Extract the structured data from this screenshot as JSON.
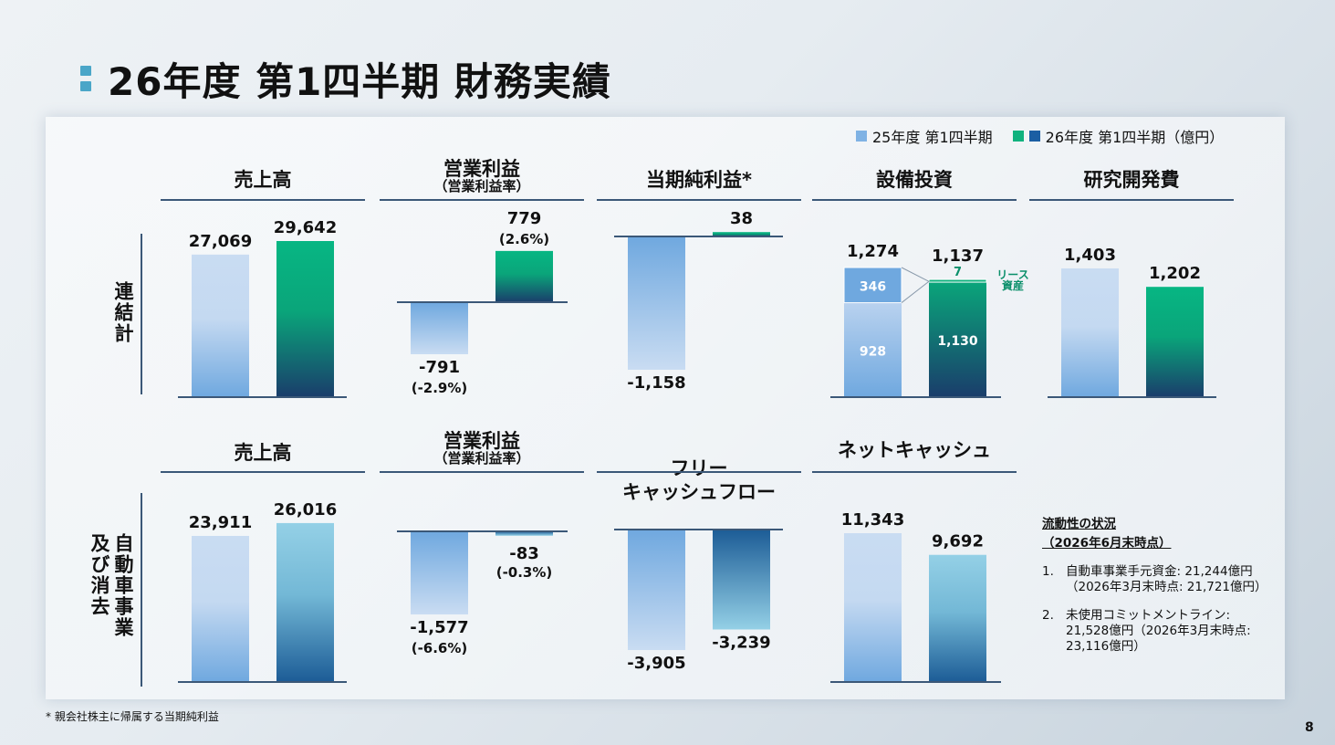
{
  "title": "26年度 第1四半期 財務実績",
  "legend": {
    "prev": "25年度 第1四半期",
    "curr": "26年度 第1四半期（億円）",
    "colors": {
      "prev": "#7fb2e4",
      "curr_green": "#10b27e",
      "curr_blue": "#1b5ea3"
    }
  },
  "row_labels": {
    "consolidated": "連結計",
    "auto": "自動車事業\n及び消去"
  },
  "headers": {
    "c1": {
      "main": "売上高",
      "sub": ""
    },
    "c2": {
      "main": "営業利益",
      "sub": "（営業利益率）"
    },
    "c3": {
      "main": "当期純利益*",
      "sub": ""
    },
    "c4": {
      "main": "設備投資",
      "sub": ""
    },
    "c5": {
      "main": "研究開発費",
      "sub": ""
    },
    "a1": {
      "main": "売上高",
      "sub": ""
    },
    "a2": {
      "main": "営業利益",
      "sub": "（営業利益率）"
    },
    "a3": {
      "main": "フリー\nキャッシュフロー",
      "sub": ""
    },
    "a4": {
      "main": "ネットキャッシュ",
      "sub": ""
    }
  },
  "chart_data": [
    {
      "id": "c1",
      "type": "bar",
      "categories": [
        "25年度 第1四半期",
        "26年度 第1四半期"
      ],
      "values": [
        27069,
        29642
      ],
      "labels": [
        "27,069",
        "29,642"
      ]
    },
    {
      "id": "c2",
      "type": "bar",
      "categories": [
        "25年度 第1四半期",
        "26年度 第1四半期"
      ],
      "values": [
        -791,
        779
      ],
      "labels": [
        "-791",
        "779"
      ],
      "sublabels": [
        "(-2.9%)",
        "(2.6%)"
      ]
    },
    {
      "id": "c3",
      "type": "bar",
      "categories": [
        "25年度 第1四半期",
        "26年度 第1四半期"
      ],
      "values": [
        -1158,
        38
      ],
      "labels": [
        "-1,158",
        "38"
      ]
    },
    {
      "id": "c4",
      "type": "bar",
      "stacked": true,
      "categories": [
        "25年度 第1四半期",
        "26年度 第1四半期"
      ],
      "totals": [
        1274,
        1137
      ],
      "total_labels": [
        "1,274",
        "1,137"
      ],
      "series": [
        {
          "values": [
            928,
            1130
          ],
          "labels": [
            "928",
            "1,130"
          ]
        },
        {
          "values": [
            346,
            7
          ],
          "labels": [
            "346",
            "7"
          ]
        }
      ],
      "annotation": "リース\n資産"
    },
    {
      "id": "c5",
      "type": "bar",
      "categories": [
        "25年度 第1四半期",
        "26年度 第1四半期"
      ],
      "values": [
        1403,
        1202
      ],
      "labels": [
        "1,403",
        "1,202"
      ]
    },
    {
      "id": "a1",
      "type": "bar",
      "categories": [
        "25年度 第1四半期",
        "26年度 第1四半期"
      ],
      "values": [
        23911,
        26016
      ],
      "labels": [
        "23,911",
        "26,016"
      ]
    },
    {
      "id": "a2",
      "type": "bar",
      "categories": [
        "25年度 第1四半期",
        "26年度 第1四半期"
      ],
      "values": [
        -1577,
        -83
      ],
      "labels": [
        "-1,577",
        "-83"
      ],
      "sublabels": [
        "(-6.6%)",
        "(-0.3%)"
      ]
    },
    {
      "id": "a3",
      "type": "bar",
      "categories": [
        "25年度 第1四半期",
        "26年度 第1四半期"
      ],
      "values": [
        -3905,
        -3239
      ],
      "labels": [
        "-3,905",
        "-3,239"
      ]
    },
    {
      "id": "a4",
      "type": "bar",
      "categories": [
        "25年度 第1四半期",
        "26年度 第1四半期"
      ],
      "values": [
        11343,
        9692
      ],
      "labels": [
        "11,343",
        "9,692"
      ]
    }
  ],
  "notes": {
    "heading": "流動性の状況",
    "subheading": "（2026年6月末時点）",
    "items": [
      {
        "num": "1.",
        "text": "自動車事業手元資金: 21,244億円（2026年3月末時点: 21,721億円）"
      },
      {
        "num": "2.",
        "text": "未使用コミットメントライン: 21,528億円（2026年3月末時点: 23,116億円）"
      }
    ]
  },
  "footnote": "* 親会社株主に帰属する当期純利益",
  "page_number": "8"
}
